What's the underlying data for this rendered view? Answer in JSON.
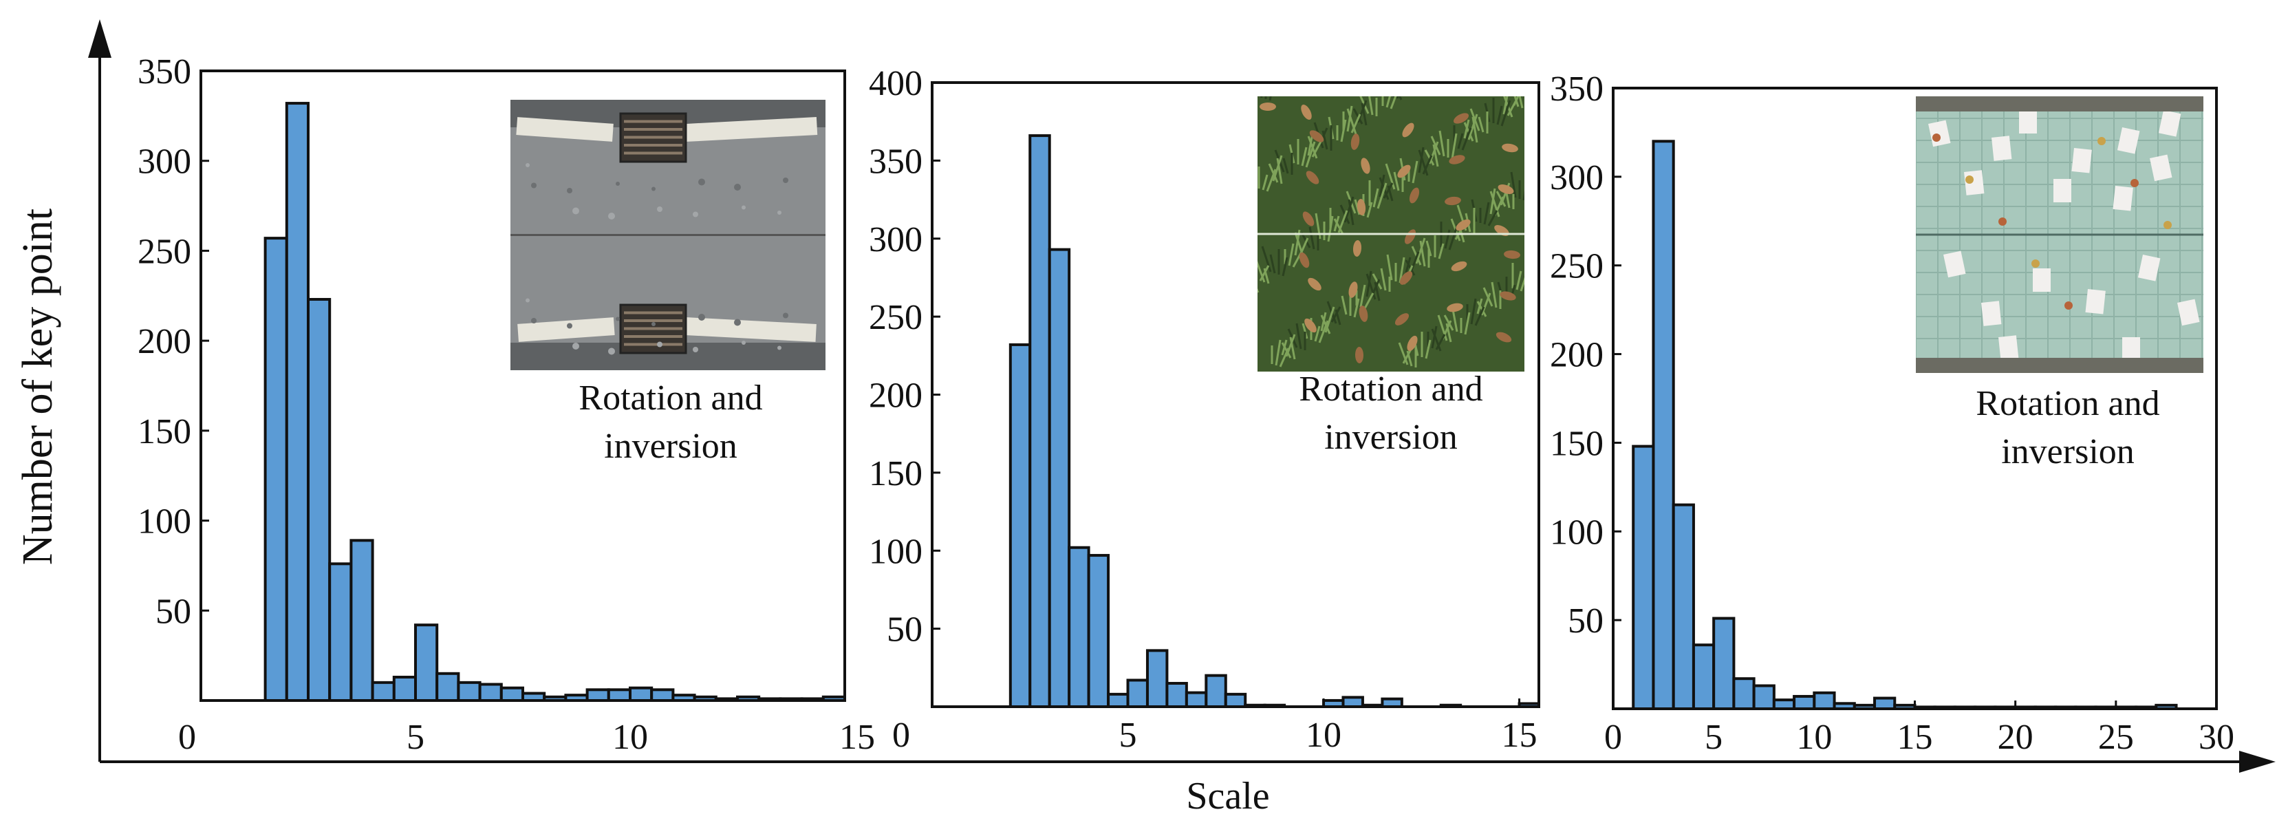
{
  "figure": {
    "ylabel": "Number of key point",
    "xlabel": "Scale"
  },
  "chart_data": [
    {
      "type": "bar",
      "title": "",
      "xlabel": "Scale",
      "ylabel": "Number of key point",
      "xlim": [
        0,
        15
      ],
      "ylim": [
        0,
        350
      ],
      "xticks": [
        0,
        5,
        10,
        15
      ],
      "yticks": [
        50,
        100,
        150,
        200,
        250,
        300,
        350
      ],
      "bin_width": 0.5,
      "bin_starts": [
        1.5,
        2.0,
        2.5,
        3.0,
        3.5,
        4.0,
        4.5,
        5.0,
        5.5,
        6.0,
        6.5,
        7.0,
        7.5,
        8.0,
        8.5,
        9.0,
        9.5,
        10.0,
        10.5,
        11.0,
        11.5,
        12.0,
        12.5,
        13.0,
        13.5,
        14.0,
        14.5
      ],
      "values": [
        257,
        332,
        223,
        76,
        89,
        10,
        13,
        42,
        15,
        10,
        9,
        7,
        4,
        2,
        3,
        6,
        6,
        7,
        6,
        3,
        2,
        1,
        2,
        1,
        1,
        1,
        2
      ],
      "annotation": [
        "Rotation and",
        "inversion"
      ],
      "inset": "road-drain"
    },
    {
      "type": "bar",
      "title": "",
      "xlabel": "Scale",
      "ylabel": "Number of key point",
      "xlim": [
        0,
        15.5
      ],
      "ylim": [
        0,
        400
      ],
      "xticks": [
        0,
        5,
        10,
        15
      ],
      "yticks": [
        50,
        100,
        150,
        200,
        250,
        300,
        350,
        400
      ],
      "bin_width": 0.5,
      "bin_starts": [
        2.0,
        2.5,
        3.0,
        3.5,
        4.0,
        4.5,
        5.0,
        5.5,
        6.0,
        6.5,
        7.0,
        7.5,
        8.0,
        8.5,
        9.0,
        9.5,
        10.0,
        10.5,
        11.0,
        11.5,
        12.0,
        12.5,
        13.0,
        13.5,
        14.0,
        14.5,
        15.0
      ],
      "values": [
        232,
        366,
        293,
        102,
        97,
        8,
        17,
        36,
        15,
        9,
        20,
        8,
        1,
        1,
        0,
        0,
        4,
        6,
        1,
        5,
        0,
        0,
        1,
        0,
        0,
        0,
        2
      ],
      "annotation": [
        "Rotation and",
        "inversion"
      ],
      "inset": "grass"
    },
    {
      "type": "bar",
      "title": "",
      "xlabel": "Scale",
      "ylabel": "Number of key point",
      "xlim": [
        0,
        30
      ],
      "ylim": [
        0,
        350
      ],
      "xticks": [
        0,
        5,
        10,
        15,
        20,
        25,
        30
      ],
      "yticks": [
        50,
        100,
        150,
        200,
        250,
        300,
        350
      ],
      "bin_width": 1,
      "bin_starts": [
        1,
        2,
        3,
        4,
        5,
        6,
        7,
        8,
        9,
        10,
        11,
        12,
        13,
        14,
        15,
        16,
        17,
        18,
        19,
        20,
        21,
        22,
        23,
        24,
        25,
        26,
        27
      ],
      "values": [
        148,
        320,
        115,
        36,
        51,
        17,
        13,
        5,
        7,
        9,
        3,
        2,
        6,
        2,
        1,
        1,
        1,
        1,
        1,
        1,
        1,
        1,
        1,
        1,
        1,
        1,
        2
      ],
      "annotation": [
        "Rotation and",
        "inversion"
      ],
      "inset": "tiles"
    }
  ]
}
